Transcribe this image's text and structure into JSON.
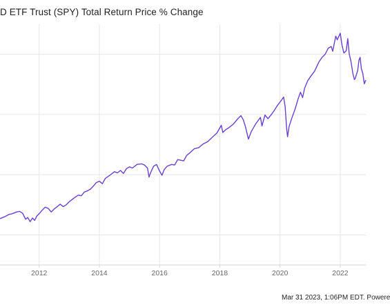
{
  "title": "D ETF Trust (SPY) Total Return Price % Change",
  "footer": "Mar 31 2023, 1:06PM EDT. Powere",
  "colors": {
    "line": "#6a3fcf",
    "grid": "#e6e6e6",
    "axis": "#d6d6d6",
    "tick": "#666666"
  },
  "chart_data": {
    "type": "line",
    "title": "D ETF Trust (SPY) Total Return Price % Change",
    "xlabel": "",
    "ylabel": "",
    "x_ticks": [
      "2012",
      "2014",
      "2016",
      "2018",
      "2020",
      "2022"
    ],
    "xlim": [
      2010.7,
      2022.85
    ],
    "ylim": [
      -50,
      350
    ],
    "grid": true,
    "series": [
      {
        "name": "",
        "points": [
          [
            2010.7,
            27
          ],
          [
            2010.85,
            30
          ],
          [
            2011.0,
            34
          ],
          [
            2011.1,
            35
          ],
          [
            2011.25,
            38
          ],
          [
            2011.35,
            39
          ],
          [
            2011.45,
            36
          ],
          [
            2011.55,
            26
          ],
          [
            2011.62,
            29
          ],
          [
            2011.7,
            22
          ],
          [
            2011.78,
            28
          ],
          [
            2011.85,
            24
          ],
          [
            2011.92,
            31
          ],
          [
            2012.0,
            35
          ],
          [
            2012.1,
            41
          ],
          [
            2012.2,
            46
          ],
          [
            2012.3,
            44
          ],
          [
            2012.4,
            38
          ],
          [
            2012.5,
            43
          ],
          [
            2012.6,
            47
          ],
          [
            2012.7,
            51
          ],
          [
            2012.8,
            47
          ],
          [
            2012.9,
            50
          ],
          [
            2013.0,
            55
          ],
          [
            2013.15,
            61
          ],
          [
            2013.3,
            66
          ],
          [
            2013.4,
            65
          ],
          [
            2013.5,
            71
          ],
          [
            2013.6,
            73
          ],
          [
            2013.7,
            76
          ],
          [
            2013.8,
            81
          ],
          [
            2013.9,
            87
          ],
          [
            2014.0,
            89
          ],
          [
            2014.1,
            85
          ],
          [
            2014.2,
            94
          ],
          [
            2014.35,
            99
          ],
          [
            2014.5,
            105
          ],
          [
            2014.6,
            103
          ],
          [
            2014.7,
            107
          ],
          [
            2014.8,
            102
          ],
          [
            2014.9,
            110
          ],
          [
            2015.0,
            113
          ],
          [
            2015.1,
            111
          ],
          [
            2015.25,
            117
          ],
          [
            2015.4,
            118
          ],
          [
            2015.5,
            116
          ],
          [
            2015.6,
            111
          ],
          [
            2015.65,
            96
          ],
          [
            2015.7,
            103
          ],
          [
            2015.8,
            114
          ],
          [
            2015.9,
            117
          ],
          [
            2016.0,
            106
          ],
          [
            2016.08,
            99
          ],
          [
            2016.15,
            108
          ],
          [
            2016.25,
            114
          ],
          [
            2016.4,
            117
          ],
          [
            2016.5,
            116
          ],
          [
            2016.6,
            125
          ],
          [
            2016.8,
            123
          ],
          [
            2016.9,
            132
          ],
          [
            2017.0,
            136
          ],
          [
            2017.15,
            143
          ],
          [
            2017.3,
            145
          ],
          [
            2017.45,
            151
          ],
          [
            2017.6,
            155
          ],
          [
            2017.75,
            162
          ],
          [
            2017.9,
            169
          ],
          [
            2018.05,
            182
          ],
          [
            2018.1,
            170
          ],
          [
            2018.2,
            175
          ],
          [
            2018.3,
            178
          ],
          [
            2018.45,
            184
          ],
          [
            2018.6,
            193
          ],
          [
            2018.7,
            198
          ],
          [
            2018.78,
            191
          ],
          [
            2018.85,
            180
          ],
          [
            2018.95,
            159
          ],
          [
            2019.05,
            172
          ],
          [
            2019.2,
            185
          ],
          [
            2019.35,
            195
          ],
          [
            2019.4,
            181
          ],
          [
            2019.5,
            199
          ],
          [
            2019.6,
            193
          ],
          [
            2019.7,
            199
          ],
          [
            2019.8,
            206
          ],
          [
            2019.9,
            214
          ],
          [
            2020.05,
            224
          ],
          [
            2020.12,
            229
          ],
          [
            2020.17,
            213
          ],
          [
            2020.22,
            176
          ],
          [
            2020.25,
            163
          ],
          [
            2020.3,
            180
          ],
          [
            2020.4,
            195
          ],
          [
            2020.5,
            209
          ],
          [
            2020.6,
            226
          ],
          [
            2020.68,
            237
          ],
          [
            2020.75,
            228
          ],
          [
            2020.82,
            244
          ],
          [
            2020.92,
            256
          ],
          [
            2021.0,
            262
          ],
          [
            2021.15,
            272
          ],
          [
            2021.3,
            288
          ],
          [
            2021.4,
            295
          ],
          [
            2021.5,
            300
          ],
          [
            2021.6,
            310
          ],
          [
            2021.7,
            313
          ],
          [
            2021.75,
            305
          ],
          [
            2021.85,
            330
          ],
          [
            2021.9,
            324
          ],
          [
            2022.0,
            335
          ],
          [
            2022.06,
            315
          ],
          [
            2022.12,
            302
          ],
          [
            2022.2,
            306
          ],
          [
            2022.25,
            326
          ],
          [
            2022.3,
            300
          ],
          [
            2022.35,
            290
          ],
          [
            2022.42,
            268
          ],
          [
            2022.47,
            258
          ],
          [
            2022.5,
            260
          ],
          [
            2022.58,
            273
          ],
          [
            2022.62,
            290
          ],
          [
            2022.66,
            295
          ],
          [
            2022.7,
            276
          ],
          [
            2022.75,
            268
          ],
          [
            2022.8,
            251
          ],
          [
            2022.85,
            257
          ]
        ]
      }
    ]
  }
}
